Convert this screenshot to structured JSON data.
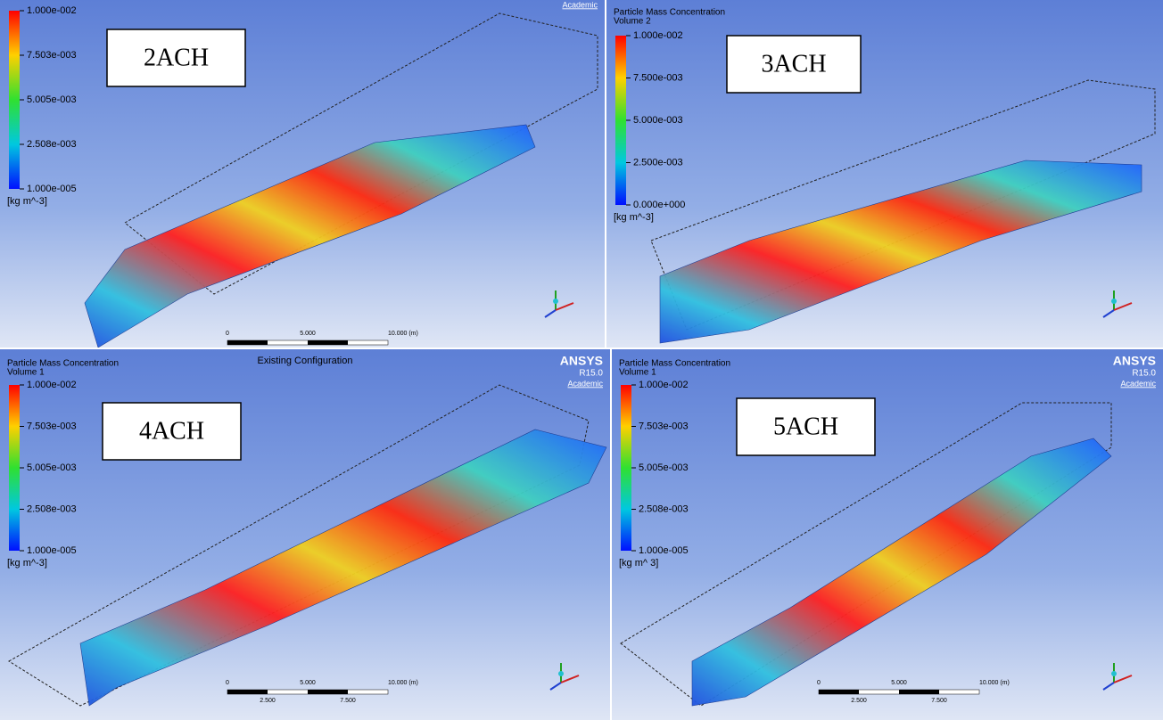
{
  "panels": [
    {
      "label": "2ACH",
      "logo": {
        "sub": "Academic"
      },
      "colorbar": {
        "ticks": [
          "1.000e-002",
          "7.503e-003",
          "5.005e-003",
          "2.508e-003",
          "1.000e-005"
        ],
        "units": "[kg m^-3]"
      },
      "scale": [
        "0",
        "5.000",
        "10.000 (m)"
      ]
    },
    {
      "label": "3ACH",
      "legend_title": "Particle Mass Concentration",
      "volume": "Volume 2",
      "colorbar": {
        "ticks": [
          "1.000e-002",
          "7.500e-003",
          "5.000e-003",
          "2.500e-003",
          "0.000e+000"
        ],
        "units": "[kg m^-3]"
      }
    },
    {
      "label": "4ACH",
      "legend_title": "Particle Mass Concentration",
      "volume": "Volume 1",
      "caption": "Existing Configuration",
      "logo": {
        "brand": "ANSYS",
        "version": "R15.0",
        "sub": "Academic"
      },
      "colorbar": {
        "ticks": [
          "1.000e-002",
          "7.503e-003",
          "5.005e-003",
          "2.508e-003",
          "1.000e-005"
        ],
        "units": "[kg m^-3]"
      },
      "scale": [
        "0",
        "5.000",
        "10.000 (m)"
      ],
      "scale_sub": [
        "2.500",
        "7.500"
      ]
    },
    {
      "label": "5ACH",
      "legend_title": "Particle Mass Concentration",
      "volume": "Volume 1",
      "logo": {
        "brand": "ANSYS",
        "version": "R15.0",
        "sub": "Academic"
      },
      "colorbar": {
        "ticks": [
          "1.000e-002",
          "7.503e-003",
          "5.005e-003",
          "2.508e-003",
          "1.000e-005"
        ],
        "units": "[kg m^ 3]"
      },
      "scale": [
        "0",
        "5.000",
        "10.000 (m)"
      ],
      "scale_sub": [
        "2.500",
        "7.500"
      ]
    }
  ]
}
